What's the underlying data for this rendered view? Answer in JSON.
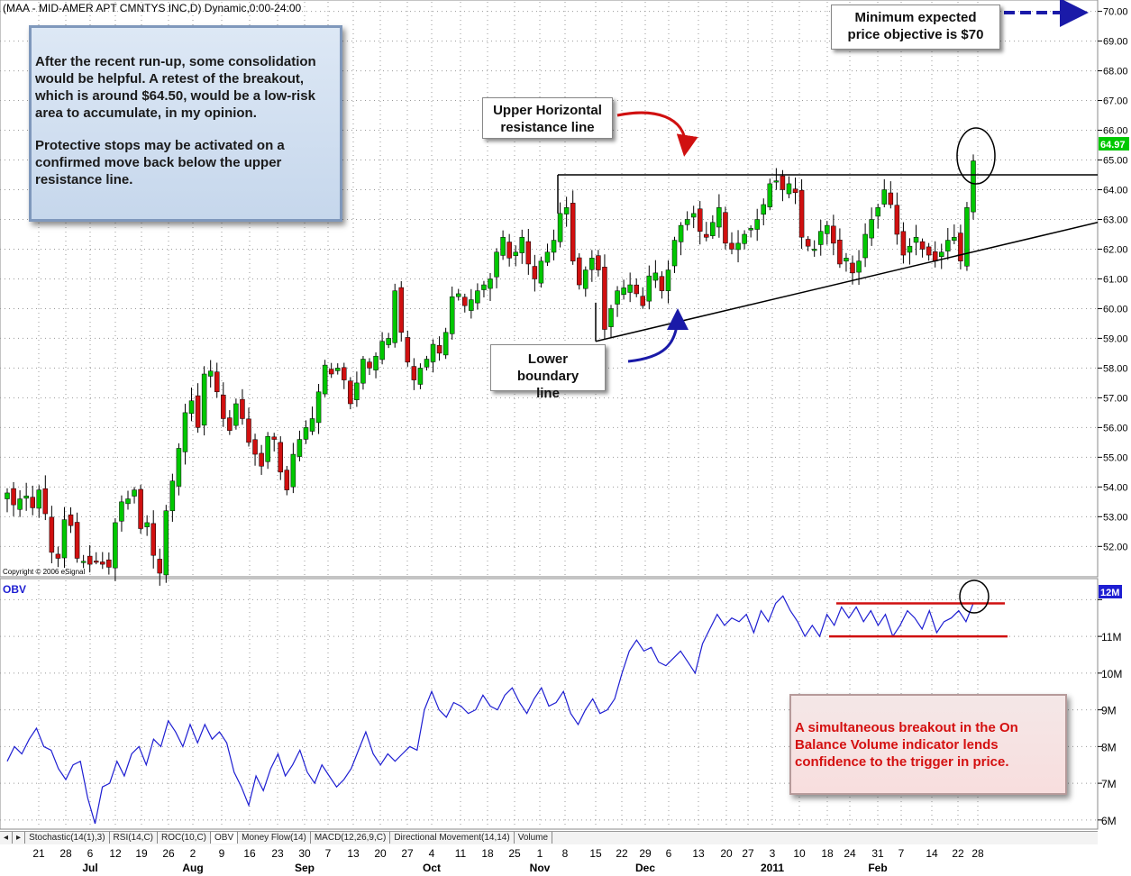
{
  "chart_header": "(MAA - MID-AMER APT CMNTYS INC,D) Dynamic,0:00-24:00",
  "copyright": "Copyright © 2006 eSignal",
  "last_price_tag": "64.97",
  "obv_label": "OBV",
  "obv_last_tag": "12M",
  "annotations": {
    "note_consolidation_1": "After the recent run-up, some consolidation would be helpful. A retest of the breakout, which is around $64.50,  would be a low-risk area to accumulate, in my opinion.",
    "note_consolidation_2": "Protective stops may be activated on a confirmed move back below the upper resistance line.",
    "upper_label": "Upper Horizontal resistance line",
    "lower_label": "Lower boundary line",
    "objective_label": "Minimum expected price objective is $70",
    "obv_note": "A simultaneous breakout in the On Balance Volume indicator lends confidence to the trigger in price."
  },
  "tabs": [
    "Stochastic(14(1),3)",
    "RSI(14,C)",
    "ROC(10,C)",
    "OBV",
    "Money Flow(14)",
    "MACD(12,26,9,C)",
    "Directional Movement(14,14)",
    "Volume"
  ],
  "active_tab": "OBV",
  "colors": {
    "up": "#00c800",
    "down": "#d01010",
    "obv": "#1e1ed2",
    "annot_line": "#d01010",
    "text_blue": "#1e1ed2"
  },
  "chart_data": [
    {
      "type": "candlestick",
      "title": "(MAA - MID-AMER APT CMNTYS INC,D) Dynamic,0:00-24:00",
      "ylim": [
        51.1,
        70.2
      ],
      "y_ticks": [
        52,
        53,
        54,
        55,
        56,
        57,
        58,
        59,
        60,
        61,
        62,
        63,
        64,
        65,
        66,
        67,
        68,
        69,
        70
      ],
      "y_tick_labels": [
        "52.00",
        "53.00",
        "54.00",
        "55.00",
        "56.00",
        "57.00",
        "58.00",
        "59.00",
        "60.00",
        "61.00",
        "62.00",
        "63.00",
        "64.00",
        "65.00",
        "66.00",
        "67.00",
        "68.00",
        "69.00",
        "70.00"
      ],
      "x_day_labels": [
        "21",
        "28",
        "6",
        "12",
        "19",
        "26",
        "2",
        "9",
        "16",
        "23",
        "30",
        "7",
        "13",
        "20",
        "27",
        "4",
        "11",
        "18",
        "25",
        "1",
        "8",
        "15",
        "22",
        "29",
        "6",
        "13",
        "20",
        "27",
        "3",
        "10",
        "18",
        "24",
        "31",
        "7",
        "14",
        "22",
        "28"
      ],
      "x_month_labels": [
        {
          "label": "Jul",
          "at": "6"
        },
        {
          "label": "Aug",
          "at": "2"
        },
        {
          "label": "Sep",
          "at": "30"
        },
        {
          "label": "Oct",
          "at": "4"
        },
        {
          "label": "Nov",
          "at": "1"
        },
        {
          "label": "Dec",
          "at": "29"
        },
        {
          "label": "2011",
          "at": "3"
        },
        {
          "label": "Feb",
          "at": "31"
        }
      ],
      "price_anchors": [
        53.8,
        53.4,
        53.6,
        53.7,
        53.3,
        53.9,
        53.1,
        51.8,
        51.6,
        52.9,
        52.7,
        51.6,
        51.5,
        51.4,
        51.5,
        51.4,
        51.3,
        52.8,
        53.5,
        53.6,
        53.9,
        52.6,
        52.8,
        51.7,
        51.1,
        53.2,
        54.2,
        55.3,
        56.5,
        56.9,
        56.0,
        57.8,
        57.9,
        57.2,
        56.3,
        55.9,
        56.8,
        56.3,
        55.5,
        55.1,
        54.7,
        55.7,
        55.6,
        54.5,
        53.9,
        55.1,
        55.6,
        56.0,
        56.3,
        57.2,
        58.1,
        57.8,
        58.0,
        57.6,
        56.8,
        57.5,
        58.3,
        58.0,
        58.4,
        58.9,
        59.0,
        60.6,
        59.2,
        58.2,
        57.6,
        58.0,
        58.3,
        58.8,
        58.5,
        59.2,
        60.4,
        60.5,
        60.1,
        60.3,
        60.6,
        60.8,
        61.0,
        61.9,
        62.4,
        61.7,
        61.9,
        62.4,
        61.5,
        61.0,
        61.6,
        61.9,
        62.3,
        63.2,
        63.4,
        61.6,
        60.8,
        61.3,
        61.7,
        61.3,
        59.3,
        60.0,
        60.6,
        60.7,
        60.8,
        60.5,
        60.1,
        61.1,
        61.2,
        60.6,
        61.3,
        62.3,
        62.8,
        63.0,
        63.2,
        62.6,
        62.4,
        62.9,
        63.4,
        62.2,
        62.0,
        62.2,
        62.5,
        62.7,
        63.0,
        63.5,
        64.2,
        64.3,
        64.0,
        64.2,
        63.9,
        62.4,
        62.1,
        62.0,
        62.6,
        62.8,
        62.2,
        61.5,
        61.7,
        61.2,
        61.6,
        62.5,
        63.0,
        63.4,
        64.0,
        63.5,
        62.5,
        61.8,
        62.1,
        62.4,
        62.0,
        61.8,
        61.6,
        61.9,
        62.3,
        62.4,
        61.6,
        63.4,
        64.97
      ],
      "resistance_line": {
        "level": 64.5,
        "from_day": "1",
        "to_day_beyond": "28"
      },
      "lower_boundary_line": {
        "start_value": 58.9,
        "start_day": "15",
        "end_value": 62.9,
        "end_beyond": "28"
      },
      "price_objective": 70.0,
      "last_value": 64.97
    },
    {
      "type": "line",
      "title": "OBV",
      "ylabel": "",
      "ylim": [
        5.8,
        12.5
      ],
      "y_ticks": [
        6,
        7,
        8,
        9,
        10,
        11,
        12
      ],
      "y_tick_labels": [
        "6M",
        "7M",
        "8M",
        "9M",
        "10M",
        "11M",
        "12M"
      ],
      "series": [
        {
          "values": [
            7.6,
            8.0,
            7.8,
            8.2,
            8.5,
            8.0,
            7.9,
            7.4,
            7.1,
            7.5,
            7.6,
            6.6,
            5.9,
            6.9,
            7.0,
            7.6,
            7.2,
            7.8,
            8.0,
            7.5,
            8.2,
            8.0,
            8.7,
            8.4,
            8.0,
            8.6,
            8.1,
            8.6,
            8.2,
            8.4,
            8.1,
            7.3,
            6.9,
            6.4,
            7.2,
            6.8,
            7.4,
            7.8,
            7.2,
            7.5,
            7.9,
            7.3,
            7.0,
            7.5,
            7.2,
            6.9,
            7.1,
            7.4,
            7.9,
            8.4,
            7.8,
            7.5,
            7.8,
            7.6,
            7.8,
            8.0,
            7.9,
            9.0,
            9.5,
            9.0,
            8.8,
            9.2,
            9.1,
            8.9,
            9.0,
            9.4,
            9.1,
            9.0,
            9.4,
            9.6,
            9.2,
            8.9,
            9.3,
            9.6,
            9.1,
            9.2,
            9.5,
            8.9,
            8.6,
            9.0,
            9.3,
            8.9,
            9.0,
            9.3,
            10.0,
            10.6,
            10.9,
            10.6,
            10.7,
            10.3,
            10.2,
            10.4,
            10.6,
            10.3,
            10.0,
            10.8,
            11.2,
            11.6,
            11.3,
            11.5,
            11.4,
            11.6,
            11.1,
            11.7,
            11.4,
            11.9,
            12.1,
            11.7,
            11.4,
            11.0,
            11.3,
            11.0,
            11.6,
            11.3,
            11.8,
            11.5,
            11.8,
            11.4,
            11.7,
            11.3,
            11.6,
            11.0,
            11.3,
            11.7,
            11.5,
            11.2,
            11.7,
            11.1,
            11.4,
            11.5,
            11.7,
            11.4,
            11.9
          ]
        }
      ],
      "breakout_upper": 11.9,
      "breakout_lower": 11.0
    }
  ]
}
